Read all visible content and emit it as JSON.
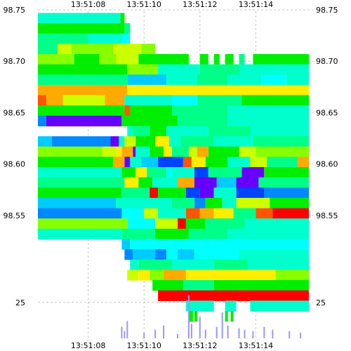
{
  "chart_data": {
    "type": "heatmap",
    "title": "",
    "x_ticks": [
      "13:51:08",
      "13:51:10",
      "13:51:12",
      "13:51:14"
    ],
    "x_tick_seconds": [
      8,
      10,
      12,
      14
    ],
    "xlim_seconds": [
      6.2,
      16.0
    ],
    "y_ticks": [
      "98.75",
      "98.70",
      "98.65",
      "98.60",
      "98.55"
    ],
    "y_tick_values": [
      98.75,
      98.7,
      98.65,
      98.6,
      98.55
    ],
    "ylim": [
      98.5,
      98.75
    ],
    "grid": true,
    "volume_ticks": [
      "25"
    ],
    "volume_tick_values": [
      25
    ],
    "volume_ylim": [
      0,
      40
    ],
    "colors": {
      "background": "#ffffff",
      "grid": "#c8c8c8",
      "text": "#000000",
      "volume_bar": "#9999ee",
      "scale": [
        "#00ffcc",
        "#00ff88",
        "#00ee00",
        "#88ff00",
        "#ccff00",
        "#ffee00",
        "#ffaa00",
        "#ff5500",
        "#ff0000",
        "#00ffff",
        "#00ccff",
        "#0088ff",
        "#0044ff",
        "#6600ff",
        "#0000dd"
      ]
    },
    "rows": [
      {
        "price": 98.742,
        "bands": [
          [
            6.2,
            9.15,
            0
          ],
          [
            9.15,
            9.3,
            2
          ]
        ]
      },
      {
        "price": 98.732,
        "bands": [
          [
            6.2,
            9.3,
            2
          ],
          [
            9.3,
            9.5,
            1
          ]
        ]
      },
      {
        "price": 98.722,
        "bands": [
          [
            6.2,
            8.0,
            1
          ],
          [
            8.0,
            9.2,
            0
          ],
          [
            9.2,
            9.5,
            9
          ]
        ]
      },
      {
        "price": 98.712,
        "bands": [
          [
            6.2,
            6.9,
            1
          ],
          [
            6.9,
            7.4,
            4
          ],
          [
            7.4,
            8.9,
            3
          ],
          [
            8.9,
            9.9,
            4
          ],
          [
            9.9,
            10.4,
            3
          ]
        ]
      },
      {
        "price": 98.702,
        "bands": [
          [
            6.2,
            7.5,
            3
          ],
          [
            7.5,
            8.4,
            2
          ],
          [
            8.4,
            9.0,
            3
          ],
          [
            9.0,
            9.8,
            4
          ],
          [
            9.8,
            11.6,
            2
          ],
          [
            12.0,
            12.3,
            2
          ],
          [
            12.5,
            12.7,
            2
          ],
          [
            12.9,
            13.2,
            2
          ],
          [
            13.4,
            13.6,
            1
          ],
          [
            13.9,
            15.9,
            2
          ]
        ]
      },
      {
        "price": 98.692,
        "bands": [
          [
            6.2,
            9.4,
            2
          ],
          [
            9.4,
            10.5,
            3
          ],
          [
            10.5,
            12.0,
            0
          ],
          [
            12.0,
            13.4,
            1
          ],
          [
            13.4,
            15.9,
            0
          ]
        ]
      },
      {
        "price": 98.682,
        "bands": [
          [
            6.2,
            9.4,
            1
          ],
          [
            9.4,
            10.8,
            10
          ],
          [
            10.8,
            11.9,
            0
          ],
          [
            11.9,
            13.0,
            1
          ],
          [
            13.0,
            14.2,
            0
          ],
          [
            14.2,
            15.1,
            9
          ],
          [
            15.1,
            15.9,
            0
          ]
        ]
      },
      {
        "price": 98.672,
        "bands": [
          [
            6.2,
            9.4,
            6
          ],
          [
            9.4,
            15.9,
            5
          ]
        ]
      },
      {
        "price": 98.662,
        "bands": [
          [
            6.2,
            6.5,
            7
          ],
          [
            6.5,
            7.1,
            6
          ],
          [
            7.1,
            8.6,
            4
          ],
          [
            8.6,
            9.3,
            6
          ],
          [
            9.3,
            11.0,
            0
          ],
          [
            11.0,
            11.9,
            9
          ],
          [
            11.9,
            13.5,
            1
          ],
          [
            13.5,
            15.9,
            2
          ]
        ]
      },
      {
        "price": 98.652,
        "bands": [
          [
            6.2,
            9.3,
            2
          ],
          [
            9.3,
            9.5,
            7
          ],
          [
            9.5,
            11.0,
            2
          ],
          [
            11.0,
            13.0,
            1
          ],
          [
            13.0,
            15.9,
            0
          ]
        ]
      },
      {
        "price": 98.642,
        "bands": [
          [
            6.2,
            6.5,
            11
          ],
          [
            6.5,
            9.2,
            13
          ],
          [
            9.2,
            11.2,
            2
          ],
          [
            11.2,
            13.0,
            1
          ],
          [
            13.0,
            15.9,
            0
          ]
        ]
      },
      {
        "price": 98.632,
        "bands": [
          [
            9.4,
            9.6,
            0
          ],
          [
            9.6,
            10.2,
            1
          ],
          [
            10.2,
            10.8,
            2
          ],
          [
            10.8,
            12.3,
            0
          ],
          [
            12.3,
            13.8,
            1
          ],
          [
            13.8,
            15.9,
            0
          ]
        ]
      },
      {
        "price": 98.622,
        "bands": [
          [
            6.2,
            6.7,
            10
          ],
          [
            6.7,
            8.8,
            11
          ],
          [
            8.8,
            9.1,
            13
          ],
          [
            9.1,
            9.3,
            0
          ],
          [
            9.3,
            9.7,
            4
          ],
          [
            9.7,
            10.4,
            2
          ],
          [
            10.4,
            10.9,
            5
          ],
          [
            10.9,
            11.3,
            0
          ],
          [
            11.3,
            12.5,
            1
          ],
          [
            12.5,
            13.9,
            0
          ],
          [
            13.9,
            15.9,
            1
          ]
        ]
      },
      {
        "price": 98.612,
        "bands": [
          [
            6.2,
            8.5,
            3
          ],
          [
            8.5,
            9.0,
            4
          ],
          [
            9.0,
            9.2,
            5
          ],
          [
            9.2,
            9.6,
            6
          ],
          [
            9.6,
            9.7,
            13
          ],
          [
            9.7,
            10.2,
            0
          ],
          [
            10.2,
            10.7,
            2
          ],
          [
            10.7,
            11.0,
            5
          ],
          [
            11.0,
            11.6,
            1
          ],
          [
            11.6,
            11.9,
            4
          ],
          [
            11.9,
            12.3,
            6
          ],
          [
            12.3,
            13.4,
            2
          ],
          [
            13.4,
            14.0,
            4
          ],
          [
            14.0,
            15.9,
            3
          ]
        ]
      },
      {
        "price": 98.602,
        "bands": [
          [
            6.2,
            8.9,
            2
          ],
          [
            8.9,
            9.3,
            6
          ],
          [
            9.3,
            9.5,
            13
          ],
          [
            9.5,
            9.9,
            0
          ],
          [
            9.9,
            10.5,
            10
          ],
          [
            10.5,
            11.4,
            12
          ],
          [
            11.4,
            11.7,
            7
          ],
          [
            11.7,
            12.2,
            5
          ],
          [
            12.2,
            13.0,
            2
          ],
          [
            13.0,
            13.8,
            0
          ],
          [
            13.8,
            14.4,
            4
          ],
          [
            14.4,
            15.5,
            1
          ],
          [
            15.5,
            15.9,
            6
          ]
        ]
      },
      {
        "price": 98.592,
        "bands": [
          [
            6.2,
            9.2,
            0
          ],
          [
            9.2,
            9.7,
            2
          ],
          [
            9.7,
            10.1,
            5
          ],
          [
            10.1,
            10.8,
            1
          ],
          [
            10.8,
            11.0,
            9
          ],
          [
            11.0,
            11.8,
            0
          ],
          [
            11.8,
            12.3,
            12
          ],
          [
            12.3,
            13.5,
            1
          ],
          [
            13.5,
            14.3,
            13
          ],
          [
            14.3,
            15.9,
            2
          ]
        ]
      },
      {
        "price": 98.582,
        "bands": [
          [
            6.2,
            9.3,
            1
          ],
          [
            9.3,
            9.8,
            5
          ],
          [
            9.8,
            10.3,
            2
          ],
          [
            10.3,
            11.2,
            0
          ],
          [
            11.2,
            11.8,
            6
          ],
          [
            11.8,
            12.6,
            13
          ],
          [
            12.6,
            13.3,
            10
          ],
          [
            13.3,
            14.1,
            13
          ],
          [
            14.1,
            15.9,
            1
          ]
        ]
      },
      {
        "price": 98.572,
        "bands": [
          [
            6.2,
            9.2,
            2
          ],
          [
            9.2,
            10.2,
            1
          ],
          [
            10.2,
            10.5,
            8
          ],
          [
            10.5,
            11.5,
            2
          ],
          [
            11.5,
            12.0,
            12
          ],
          [
            12.0,
            12.5,
            13
          ],
          [
            12.5,
            13.3,
            0
          ],
          [
            13.3,
            14.3,
            12
          ],
          [
            14.3,
            15.9,
            11
          ]
        ]
      },
      {
        "price": 98.562,
        "bands": [
          [
            6.2,
            9.0,
            10
          ],
          [
            9.0,
            11.0,
            0
          ],
          [
            11.0,
            11.8,
            1
          ],
          [
            11.8,
            12.2,
            11
          ],
          [
            12.2,
            12.8,
            2
          ],
          [
            12.8,
            13.3,
            0
          ],
          [
            13.3,
            14.5,
            4
          ],
          [
            14.5,
            15.9,
            2
          ]
        ]
      },
      {
        "price": 98.552,
        "bands": [
          [
            6.2,
            9.2,
            11
          ],
          [
            9.2,
            10.0,
            9
          ],
          [
            10.0,
            10.5,
            4
          ],
          [
            10.5,
            11.5,
            0
          ],
          [
            11.5,
            12.0,
            7
          ],
          [
            12.0,
            12.5,
            6
          ],
          [
            12.5,
            13.2,
            5
          ],
          [
            13.2,
            14.0,
            1
          ],
          [
            14.0,
            14.6,
            7
          ],
          [
            14.6,
            15.9,
            8
          ]
        ]
      },
      {
        "price": 98.542,
        "bands": [
          [
            6.2,
            9.4,
            3
          ],
          [
            9.4,
            10.4,
            9
          ],
          [
            10.4,
            11.2,
            4
          ],
          [
            11.2,
            11.5,
            8
          ],
          [
            11.5,
            12.2,
            2
          ],
          [
            12.2,
            13.6,
            1
          ],
          [
            13.6,
            15.9,
            0
          ]
        ]
      },
      {
        "price": 98.532,
        "bands": [
          [
            6.2,
            9.2,
            0
          ],
          [
            9.2,
            10.4,
            1
          ],
          [
            10.4,
            11.6,
            2
          ],
          [
            11.6,
            13.0,
            1
          ],
          [
            13.0,
            15.9,
            0
          ]
        ]
      },
      {
        "price": 98.522,
        "bands": [
          [
            9.2,
            9.5,
            10
          ],
          [
            9.5,
            12.5,
            9
          ],
          [
            12.5,
            15.9,
            9
          ]
        ]
      },
      {
        "price": 98.512,
        "bands": [
          [
            9.3,
            9.6,
            11
          ],
          [
            9.6,
            10.4,
            10
          ],
          [
            10.4,
            10.8,
            11
          ],
          [
            10.8,
            11.2,
            9
          ],
          [
            11.2,
            11.8,
            10
          ],
          [
            11.8,
            13.4,
            9
          ],
          [
            13.4,
            15.9,
            0
          ]
        ]
      },
      {
        "price": 98.502,
        "bands": [
          [
            9.5,
            9.8,
            0
          ],
          [
            9.8,
            11.0,
            1
          ],
          [
            11.0,
            12.5,
            0
          ],
          [
            12.5,
            13.7,
            1
          ],
          [
            13.7,
            15.9,
            0
          ]
        ]
      },
      {
        "price": 98.492,
        "bands": [
          [
            9.4,
            9.8,
            4
          ],
          [
            9.8,
            10.2,
            5
          ],
          [
            10.2,
            10.7,
            3
          ],
          [
            10.7,
            11.5,
            6
          ],
          [
            11.5,
            14.7,
            5
          ],
          [
            14.7,
            15.9,
            3
          ]
        ]
      },
      {
        "price": 98.482,
        "bands": [
          [
            10.3,
            11.4,
            2
          ],
          [
            11.4,
            12.5,
            1
          ],
          [
            12.5,
            15.9,
            2
          ]
        ]
      },
      {
        "price": 98.472,
        "bands": [
          [
            10.5,
            15.9,
            8
          ]
        ]
      },
      {
        "price": 98.462,
        "bands": [
          [
            11.5,
            12.5,
            0
          ],
          [
            12.9,
            13.3,
            0
          ],
          [
            13.8,
            15.9,
            0
          ]
        ]
      },
      {
        "price": 98.452,
        "bands": [
          [
            11.6,
            11.75,
            2
          ],
          [
            11.8,
            11.9,
            2
          ],
          [
            12.9,
            13.0,
            2
          ],
          [
            13.1,
            13.2,
            2
          ]
        ]
      }
    ],
    "volume": [
      [
        9.2,
        8
      ],
      [
        9.3,
        5
      ],
      [
        9.4,
        12
      ],
      [
        10.0,
        4
      ],
      [
        10.4,
        6
      ],
      [
        10.7,
        9
      ],
      [
        11.2,
        3
      ],
      [
        11.6,
        30
      ],
      [
        11.7,
        10
      ],
      [
        12.0,
        15
      ],
      [
        12.2,
        6
      ],
      [
        12.6,
        8
      ],
      [
        12.8,
        18
      ],
      [
        13.0,
        9
      ],
      [
        13.4,
        7
      ],
      [
        13.6,
        6
      ],
      [
        13.9,
        5
      ],
      [
        14.3,
        8
      ],
      [
        14.6,
        6
      ],
      [
        15.2,
        5
      ],
      [
        15.6,
        4
      ]
    ]
  }
}
